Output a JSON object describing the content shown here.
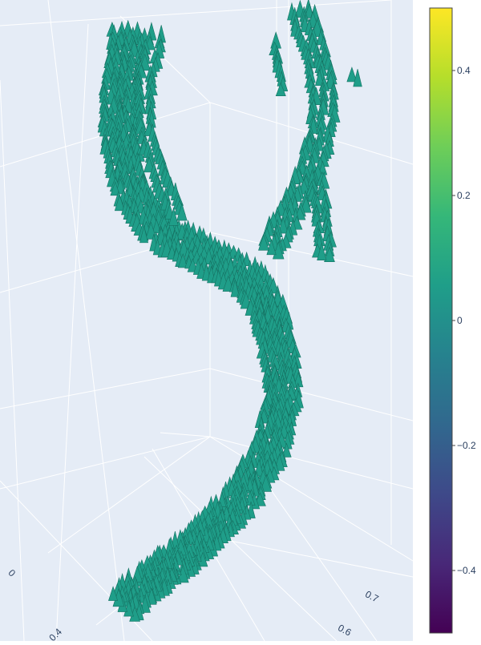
{
  "chart_data": {
    "type": "3d-cone",
    "title": "",
    "scene": {
      "background_color": "#e5ecf6",
      "grid_color": "#ffffff",
      "visible_tick_labels": [
        {
          "axis": "x",
          "label": "0.4"
        },
        {
          "axis": "x",
          "label": "0"
        },
        {
          "axis": "y",
          "label": "0.6"
        },
        {
          "axis": "y",
          "label": "0.7"
        }
      ]
    },
    "cone_color_value": 0,
    "colorbar": {
      "colorscale": "Viridis",
      "range": [
        -0.5,
        0.5
      ],
      "tickvals": [
        0.4,
        0.2,
        0,
        -0.2,
        -0.4
      ],
      "ticktext": [
        "0.4",
        "0.2",
        "0",
        "−0.2",
        "−0.4"
      ],
      "colors": [
        "#440154",
        "#482878",
        "#3e4989",
        "#31688e",
        "#26828e",
        "#1f9e89",
        "#35b779",
        "#6ece58",
        "#b5de2b",
        "#fde725"
      ]
    }
  }
}
